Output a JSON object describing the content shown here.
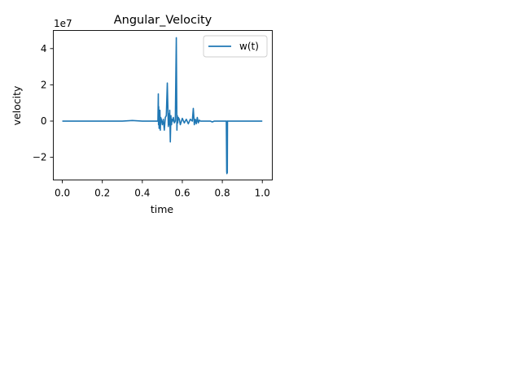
{
  "chart_data": {
    "type": "line",
    "title": "Angular_Velocity",
    "xlabel": "time",
    "ylabel": "velocity",
    "y_offset_label": "1e7",
    "xlim": [
      -0.045,
      1.05
    ],
    "ylim": [
      -3.25,
      5.0
    ],
    "xticks": [
      0.0,
      0.2,
      0.4,
      0.6,
      0.8,
      1.0
    ],
    "xtick_labels": [
      "0.0",
      "0.2",
      "0.4",
      "0.6",
      "0.8",
      "1.0"
    ],
    "yticks": [
      -2,
      0,
      2,
      4
    ],
    "ytick_labels": [
      "−2",
      "0",
      "2",
      "4"
    ],
    "grid": false,
    "legend_position": "upper right",
    "series": [
      {
        "name": "w(t)",
        "color": "#1f77b4",
        "x": [
          0.0,
          0.1,
          0.2,
          0.3,
          0.35,
          0.4,
          0.45,
          0.478,
          0.48,
          0.481,
          0.482,
          0.484,
          0.486,
          0.488,
          0.49,
          0.492,
          0.495,
          0.5,
          0.505,
          0.51,
          0.515,
          0.52,
          0.525,
          0.53,
          0.533,
          0.535,
          0.537,
          0.54,
          0.543,
          0.546,
          0.549,
          0.552,
          0.555,
          0.56,
          0.565,
          0.57,
          0.573,
          0.575,
          0.577,
          0.58,
          0.585,
          0.59,
          0.6,
          0.61,
          0.62,
          0.63,
          0.64,
          0.65,
          0.655,
          0.66,
          0.665,
          0.67,
          0.675,
          0.68,
          0.685,
          0.69,
          0.7,
          0.72,
          0.74,
          0.75,
          0.76,
          0.78,
          0.8,
          0.81,
          0.82,
          0.822,
          0.823,
          0.824,
          0.825,
          0.826,
          0.827,
          0.828,
          0.83,
          0.85,
          0.9,
          0.95,
          1.0
        ],
        "y": [
          0.0,
          0.0,
          0.0,
          0.0,
          0.03,
          0.0,
          0.0,
          0.0,
          1.5,
          -0.2,
          0.8,
          -0.4,
          0.3,
          0.6,
          -0.5,
          0.2,
          0.1,
          -0.2,
          0.1,
          -0.5,
          0.2,
          0.3,
          2.1,
          -0.3,
          0.4,
          -0.2,
          0.6,
          -1.15,
          0.3,
          -0.2,
          0.1,
          0.0,
          0.2,
          -0.1,
          0.0,
          4.6,
          -0.5,
          0.3,
          -0.1,
          0.2,
          0.1,
          -0.2,
          0.15,
          -0.1,
          0.1,
          -0.15,
          0.1,
          0.0,
          0.7,
          -0.2,
          0.1,
          -0.15,
          0.2,
          -0.1,
          0.05,
          0.0,
          0.0,
          0.0,
          0.0,
          -0.05,
          0.0,
          0.0,
          0.0,
          0.0,
          0.0,
          -2.8,
          -2.9,
          0.0,
          -2.85,
          0.0,
          0.0,
          0.0,
          0.0,
          0.0,
          0.0,
          0.0,
          0.0
        ]
      }
    ]
  }
}
